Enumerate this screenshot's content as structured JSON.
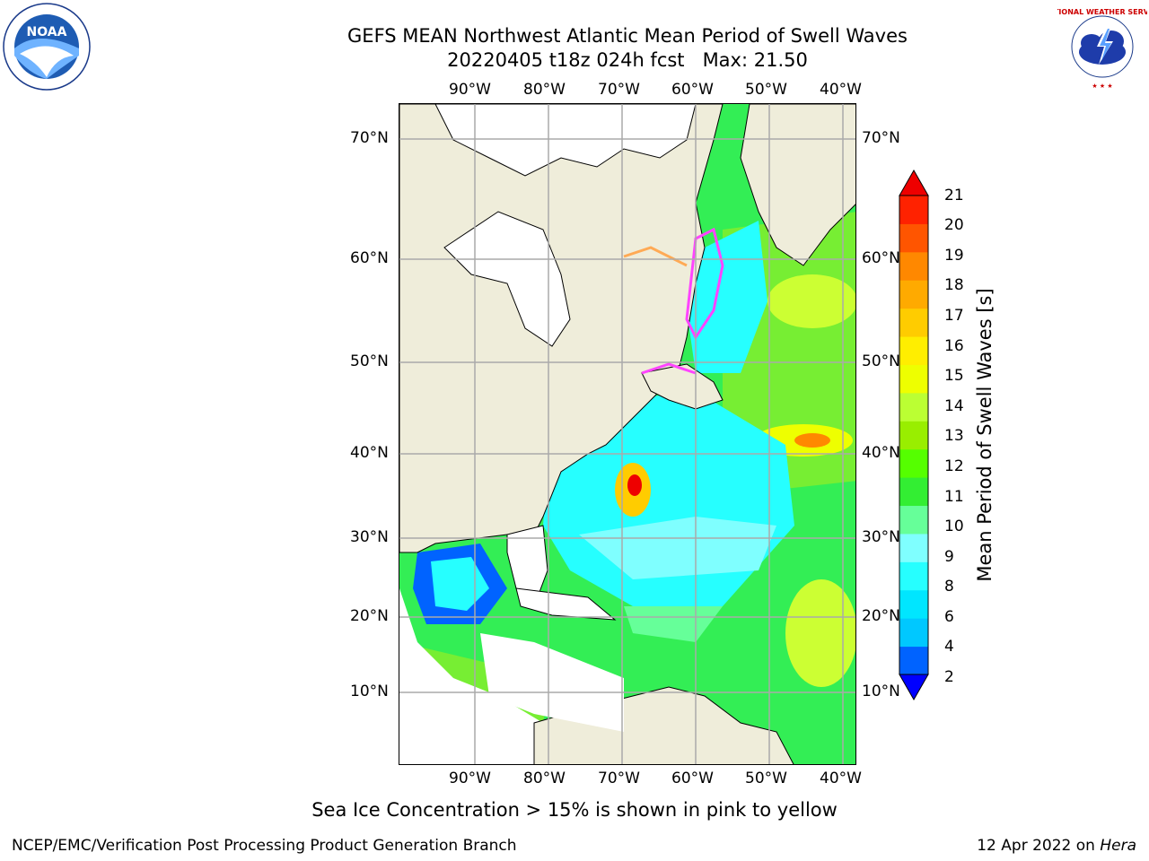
{
  "title": {
    "line1": "GEFS MEAN Northwest Atlantic Mean Period of Swell Waves",
    "line2": "20220405 t18z 024h fcst   Max: 21.50"
  },
  "map": {
    "lon_labels": [
      "90°W",
      "80°W",
      "70°W",
      "60°W",
      "50°W",
      "40°W"
    ],
    "lat_labels": [
      "70°N",
      "60°N",
      "50°N",
      "40°N",
      "30°N",
      "20°N",
      "10°N"
    ]
  },
  "colorbar": {
    "label": "Mean Period of Swell Waves [s]",
    "ticks": [
      "21",
      "20",
      "19",
      "18",
      "17",
      "16",
      "15",
      "14",
      "13",
      "12",
      "11",
      "10",
      "9",
      "8",
      "6",
      "4",
      "2"
    ],
    "colors": [
      "#0000ff",
      "#0063ff",
      "#00c8ff",
      "#00e6ff",
      "#26ffff",
      "#7fffff",
      "#66ff99",
      "#33ee33",
      "#55ff00",
      "#99ee00",
      "#bbff33",
      "#eeff00",
      "#ffee00",
      "#ffcc00",
      "#ffaa00",
      "#ff8800",
      "#ff5500",
      "#ff2200",
      "#ee0000"
    ]
  },
  "note": "Sea Ice Concentration > 15% is shown in pink to yellow",
  "footer": {
    "left": "NCEP/EMC/Verification Post Processing Product Generation Branch",
    "date": "12 Apr 2022 on",
    "host": "Hera"
  },
  "logos": {
    "noaa": "NOAA",
    "nws": "NATIONAL WEATHER SERVICE"
  }
}
